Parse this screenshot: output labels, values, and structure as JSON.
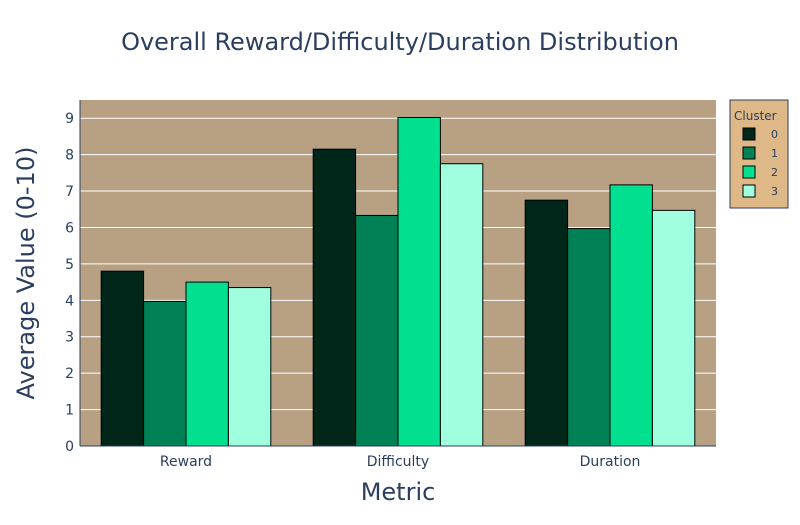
{
  "chart_data": {
    "type": "bar",
    "title": "Overall Reward/Difficulty/Duration Distribution",
    "xlabel": "Metric",
    "ylabel": "Average Value (0-10)",
    "categories": [
      "Reward",
      "Difficulty",
      "Duration"
    ],
    "ylim": [
      0,
      9.5
    ],
    "yticks": [
      0,
      1,
      2,
      3,
      4,
      5,
      6,
      7,
      8,
      9
    ],
    "grid": true,
    "legend_title": "Cluster",
    "legend_position": "top-right",
    "plot_background": "#b8a083",
    "legend_background": "#deb887",
    "series": [
      {
        "name": "0",
        "color": "#00261a",
        "values": [
          4.8,
          8.15,
          6.75
        ]
      },
      {
        "name": "1",
        "color": "#008055",
        "values": [
          3.97,
          6.33,
          5.97
        ]
      },
      {
        "name": "2",
        "color": "#00e08f",
        "values": [
          4.5,
          9.02,
          7.17
        ]
      },
      {
        "name": "3",
        "color": "#a0ffdf",
        "values": [
          4.35,
          7.75,
          6.47
        ]
      }
    ]
  }
}
